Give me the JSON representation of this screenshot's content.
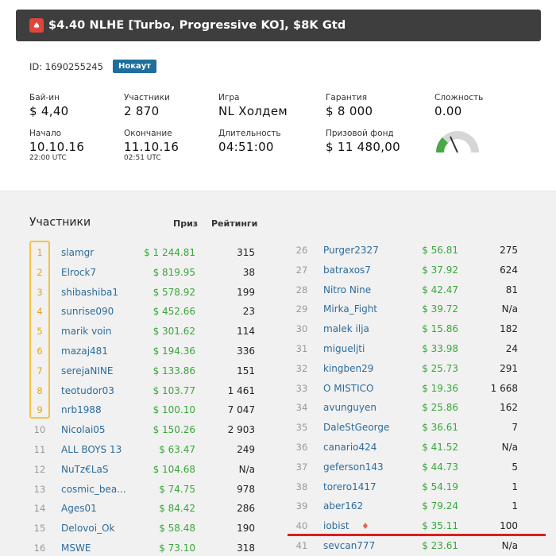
{
  "title": "$4.40 NLHE [Turbo, Progressive KO], $8K Gtd",
  "id_label": "ID: 1690255245",
  "badge": "Нокаут",
  "stats": {
    "buyin": {
      "label": "Бай-ин",
      "value": "$ 4,40"
    },
    "players": {
      "label": "Участники",
      "value": "2 870"
    },
    "game": {
      "label": "Игра",
      "value": "NL Холдем"
    },
    "guarantee": {
      "label": "Гарантия",
      "value": "$ 8 000"
    },
    "difficulty": {
      "label": "Сложность",
      "value": "0.00",
      "level": 0.0
    },
    "start": {
      "label": "Начало",
      "value": "10.10.16",
      "sub": "22:00 UTC"
    },
    "end": {
      "label": "Окончание",
      "value": "11.10.16",
      "sub": "02:51 UTC"
    },
    "duration": {
      "label": "Длительность",
      "value": "04:51:00"
    },
    "prizepool": {
      "label": "Призовой фонд",
      "value": "$ 11 480,00"
    }
  },
  "table": {
    "heading": "Участники",
    "col_prize": "Приз",
    "col_rating": "Рейтинги",
    "left": [
      {
        "rank": "1",
        "name": "slamgr",
        "prize": "$ 1 244.81",
        "rating": "315"
      },
      {
        "rank": "2",
        "name": "Elrock7",
        "prize": "$ 819.95",
        "rating": "38"
      },
      {
        "rank": "3",
        "name": "shibashiba1",
        "prize": "$ 578.92",
        "rating": "199"
      },
      {
        "rank": "4",
        "name": "sunrise090",
        "prize": "$ 452.66",
        "rating": "23"
      },
      {
        "rank": "5",
        "name": "marik voin",
        "prize": "$ 301.62",
        "rating": "114"
      },
      {
        "rank": "6",
        "name": "mazaj481",
        "prize": "$ 194.36",
        "rating": "336"
      },
      {
        "rank": "7",
        "name": "serejaNINE",
        "prize": "$ 133.86",
        "rating": "151"
      },
      {
        "rank": "8",
        "name": "teotudor03",
        "prize": "$ 103.77",
        "rating": "1 461"
      },
      {
        "rank": "9",
        "name": "nrb1988",
        "prize": "$ 100.10",
        "rating": "7 047"
      },
      {
        "rank": "10",
        "name": "Nicolai05",
        "prize": "$ 150.26",
        "rating": "2 903"
      },
      {
        "rank": "11",
        "name": "ALL BOYS 13",
        "prize": "$ 63.47",
        "rating": "249"
      },
      {
        "rank": "12",
        "name": "NuTz€LaS",
        "prize": "$ 104.68",
        "rating": "N/a"
      },
      {
        "rank": "13",
        "name": "cosmic_bea...",
        "prize": "$ 74.75",
        "rating": "978"
      },
      {
        "rank": "14",
        "name": "Ages01",
        "prize": "$ 84.42",
        "rating": "286"
      },
      {
        "rank": "15",
        "name": "Delovoi_Ok",
        "prize": "$ 58.48",
        "rating": "190"
      },
      {
        "rank": "16",
        "name": "MSWE",
        "prize": "$ 73.10",
        "rating": "318"
      }
    ],
    "right": [
      {
        "rank": "26",
        "name": "Purger2327",
        "prize": "$ 56.81",
        "rating": "275"
      },
      {
        "rank": "27",
        "name": "batraxos7",
        "prize": "$ 37.92",
        "rating": "624"
      },
      {
        "rank": "28",
        "name": "Nitro Nine",
        "prize": "$ 42.47",
        "rating": "81"
      },
      {
        "rank": "29",
        "name": "Mirka_Fight",
        "prize": "$ 39.72",
        "rating": "N/a"
      },
      {
        "rank": "30",
        "name": "malek ilja",
        "prize": "$ 15.86",
        "rating": "182"
      },
      {
        "rank": "31",
        "name": "migueljti",
        "prize": "$ 33.98",
        "rating": "24"
      },
      {
        "rank": "32",
        "name": "kingben29",
        "prize": "$ 25.73",
        "rating": "291"
      },
      {
        "rank": "33",
        "name": "O MISTICO",
        "prize": "$ 19.36",
        "rating": "1 668"
      },
      {
        "rank": "34",
        "name": "avunguyen",
        "prize": "$ 25.86",
        "rating": "162"
      },
      {
        "rank": "35",
        "name": "DaleStGeorge",
        "prize": "$ 36.61",
        "rating": "7"
      },
      {
        "rank": "36",
        "name": "canario424",
        "prize": "$ 41.52",
        "rating": "N/a"
      },
      {
        "rank": "37",
        "name": "geferson143",
        "prize": "$ 44.73",
        "rating": "5"
      },
      {
        "rank": "38",
        "name": "torero1417",
        "prize": "$ 54.19",
        "rating": "1"
      },
      {
        "rank": "39",
        "name": "aber162",
        "prize": "$ 79.24",
        "rating": "1"
      },
      {
        "rank": "40",
        "name": "iobist",
        "prize": "$ 35.11",
        "rating": "100",
        "marker": "pokerstars-icon"
      },
      {
        "rank": "41",
        "name": "sevcan777",
        "prize": "$ 23.61",
        "rating": "N/a"
      }
    ]
  },
  "colors": {
    "accent_blue": "#2c6c9c",
    "prize_green": "#3aa63a",
    "gold": "#f5c23c",
    "highlight_red": "#d9201f",
    "header_dark": "#3e3e3e"
  }
}
